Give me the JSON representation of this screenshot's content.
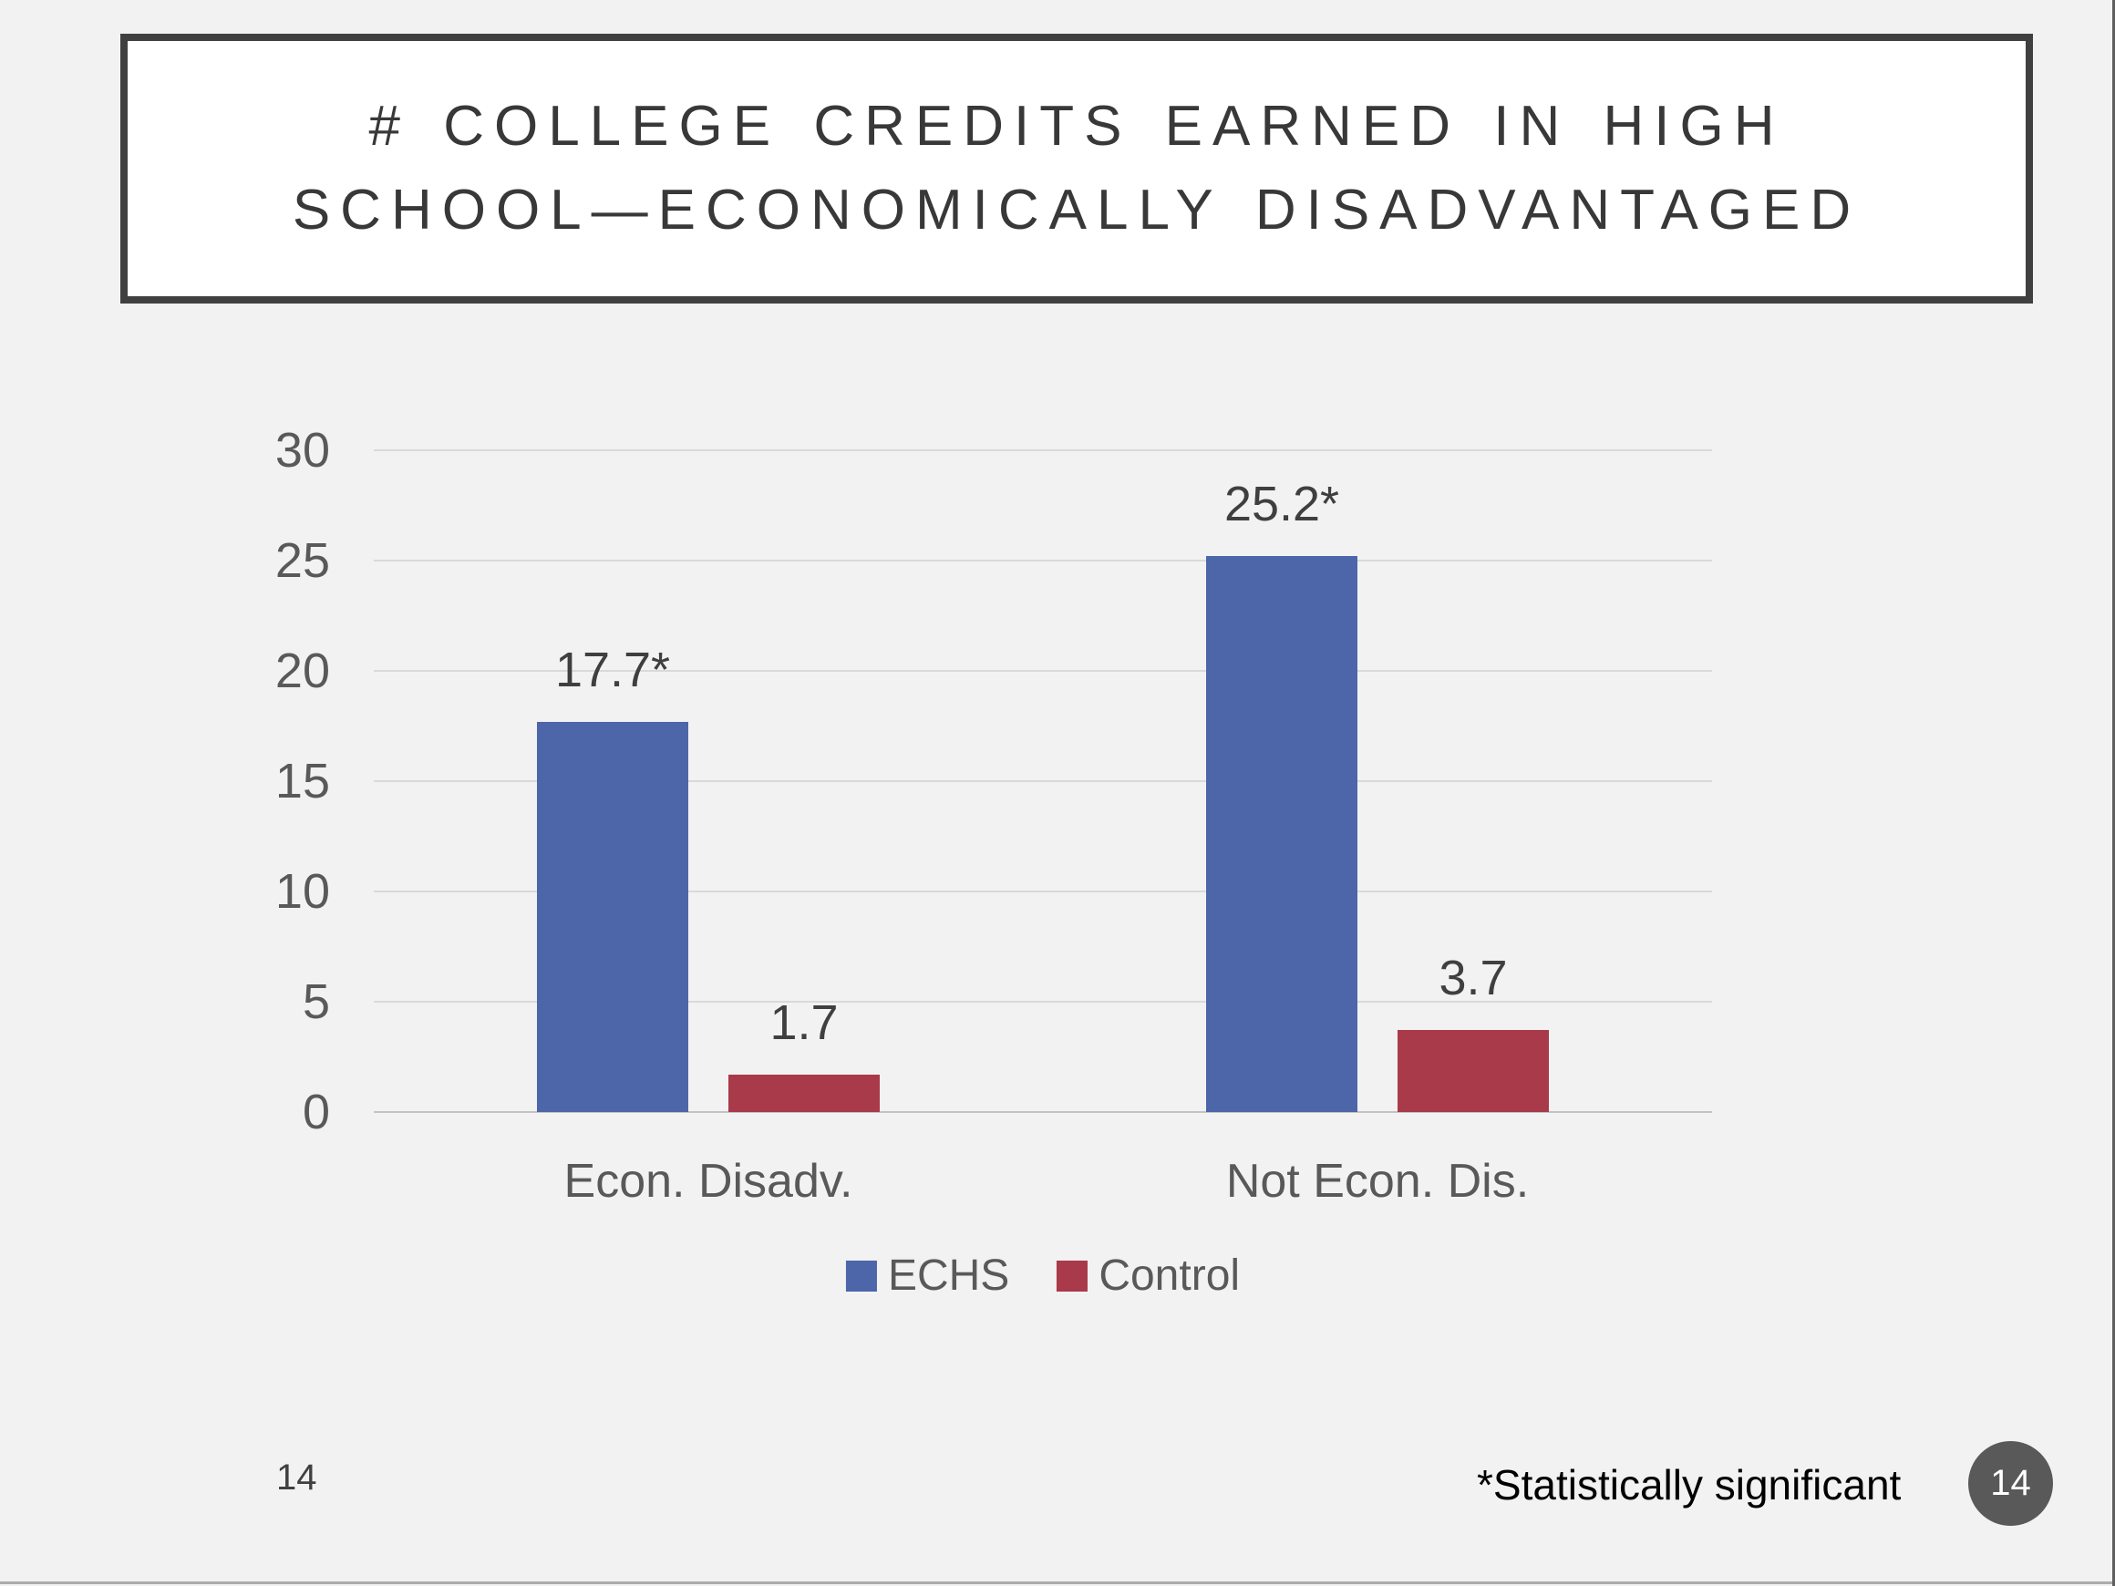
{
  "title": {
    "text": "# COLLEGE CREDITS EARNED IN HIGH SCHOOL—ECONOMICALLY DISADVANTAGED",
    "lines": [
      "# COLLEGE CREDITS EARNED IN HIGH",
      "SCHOOL—ECONOMICALLY DISADVANTAGED"
    ]
  },
  "chart_data": {
    "type": "bar",
    "title": "",
    "categories": [
      "Econ. Disadv.",
      "Not Econ. Dis."
    ],
    "series": [
      {
        "name": "ECHS",
        "color": "#4C66A9",
        "values": [
          17.7,
          25.2
        ],
        "data_labels": [
          "17.7*",
          "25.2*"
        ]
      },
      {
        "name": "Control",
        "color": "#A93A49",
        "values": [
          1.7,
          3.7
        ],
        "data_labels": [
          "1.7",
          "3.7"
        ]
      }
    ],
    "ylim": [
      0,
      30
    ],
    "yticks": [
      "0",
      "5",
      "10",
      "15",
      "20",
      "25",
      "30"
    ],
    "grid": true,
    "legend_position": "bottom"
  },
  "footer": {
    "page_number": "14",
    "note": "*Statistically significant",
    "badge_number": "14"
  },
  "colors": {
    "slide_background": "#F2F2F2",
    "title_box_fill": "#FFFFFF",
    "title_box_border": "#404040",
    "echs_blue": "#4C66A9",
    "control_red": "#A93A49",
    "gridline": "#D9D9D9",
    "axis_text": "#595959",
    "badge_fill": "#595959"
  }
}
